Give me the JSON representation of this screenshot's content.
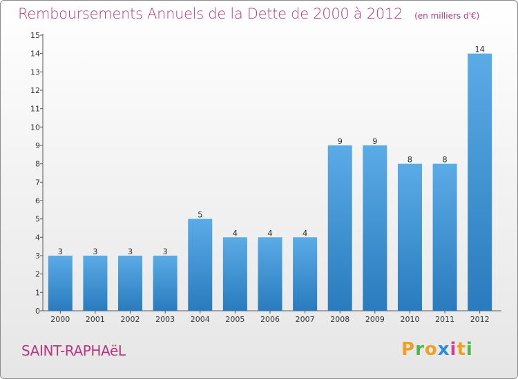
{
  "header": {
    "title": "Remboursements Annuels de la Dette de 2000 à 2012",
    "unit": "(en milliers d'€)"
  },
  "footer": {
    "commune": "SAINT-RAPHAëL",
    "logo": "Proxiti"
  },
  "colors": {
    "title": "#b5397d",
    "bar_top": "#5aabe6",
    "bar_bottom": "#2a7bbd",
    "logo_letters": [
      "#f0a020",
      "#4db848",
      "#f0a020",
      "#2a8fd8",
      "#d23f8a",
      "#f0a020",
      "#4db848"
    ]
  },
  "chart_data": {
    "type": "bar",
    "categories": [
      "2000",
      "2001",
      "2002",
      "2003",
      "2004",
      "2005",
      "2006",
      "2007",
      "2008",
      "2009",
      "2010",
      "2011",
      "2012"
    ],
    "values": [
      3,
      3,
      3,
      3,
      5,
      4,
      4,
      4,
      9,
      9,
      8,
      8,
      14
    ],
    "yticks": [
      0,
      1,
      2,
      3,
      4,
      5,
      6,
      7,
      8,
      9,
      10,
      11,
      12,
      13,
      14,
      15
    ],
    "ylim": [
      0,
      15
    ],
    "grid": false,
    "legend": "none",
    "title": "Remboursements Annuels de la Dette de 2000 à 2012",
    "xlabel": "",
    "ylabel": ""
  }
}
